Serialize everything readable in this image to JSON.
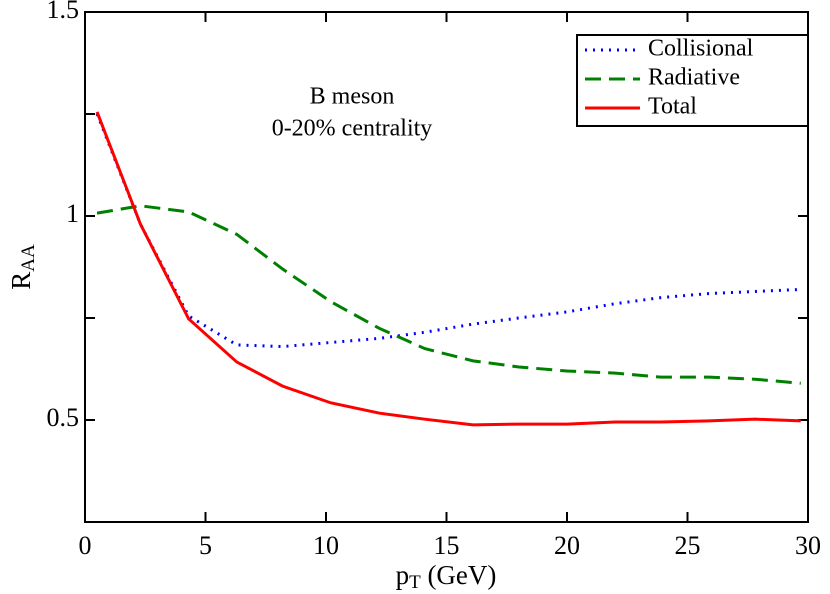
{
  "chart_data": {
    "type": "line",
    "xlabel": {
      "base": "p",
      "sub": "T",
      "suffix": " (GeV)"
    },
    "ylabel": {
      "base": "R",
      "sub": "AA"
    },
    "annotations": [
      "B meson",
      "0-20% centrality"
    ],
    "x": [
      0.5,
      2.3,
      4.3,
      6.3,
      8.2,
      10.2,
      12.2,
      14.1,
      16.1,
      18,
      20,
      22,
      23.9,
      25.9,
      27.8,
      29.7
    ],
    "series": [
      {
        "name": "Collisional",
        "color": "#0000ff",
        "dash": "dotted",
        "values": [
          1.25,
          0.98,
          0.755,
          0.684,
          0.68,
          0.69,
          0.7,
          0.715,
          0.735,
          0.75,
          0.765,
          0.785,
          0.8,
          0.81,
          0.815,
          0.82
        ]
      },
      {
        "name": "Radiative",
        "color": "#008000",
        "dash": "dashed",
        "values": [
          1.007,
          1.025,
          1.01,
          0.955,
          0.87,
          0.79,
          0.725,
          0.675,
          0.645,
          0.63,
          0.62,
          0.615,
          0.605,
          0.605,
          0.6,
          0.59
        ]
      },
      {
        "name": "Total",
        "color": "#ff0000",
        "dash": "solid",
        "values": [
          1.255,
          0.98,
          0.748,
          0.642,
          0.583,
          0.542,
          0.517,
          0.502,
          0.488,
          0.49,
          0.49,
          0.495,
          0.495,
          0.498,
          0.502,
          0.498
        ]
      }
    ],
    "xlim": [
      0,
      30
    ],
    "xticks": [
      0,
      5,
      10,
      15,
      20,
      25,
      30
    ],
    "ylim": [
      0.25,
      1.5
    ],
    "yticks": [
      0.5,
      1,
      1.5
    ],
    "yminorticks": [
      0.75,
      1.25
    ],
    "legend": "upper right",
    "grid": false
  }
}
